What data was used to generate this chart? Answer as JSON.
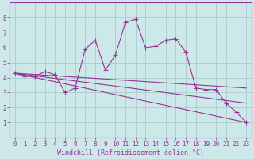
{
  "background_color": "#cce8e8",
  "grid_color": "#aacccc",
  "line_color": "#993399",
  "spine_color": "#993399",
  "xlabel": "Windchill (Refroidissement éolien,°C)",
  "xlim": [
    -0.5,
    23.5
  ],
  "ylim": [
    0,
    9
  ],
  "xticks": [
    0,
    1,
    2,
    3,
    4,
    5,
    6,
    7,
    8,
    9,
    10,
    11,
    12,
    13,
    14,
    15,
    16,
    17,
    18,
    19,
    20,
    21,
    22,
    23
  ],
  "yticks": [
    1,
    2,
    3,
    4,
    5,
    6,
    7,
    8
  ],
  "series": [
    {
      "x": [
        0,
        1,
        2,
        3,
        4,
        5,
        6,
        7,
        8,
        9,
        10,
        11,
        12,
        13,
        14,
        15,
        16,
        17,
        18,
        19,
        20,
        21,
        22,
        23
      ],
      "y": [
        4.3,
        4.1,
        4.1,
        4.4,
        4.2,
        3.0,
        3.3,
        5.9,
        6.5,
        4.5,
        5.5,
        7.7,
        7.9,
        6.0,
        6.1,
        6.5,
        6.6,
        5.7,
        3.3,
        3.2,
        3.2,
        2.3,
        1.7,
        1.0
      ],
      "marker": true
    },
    {
      "x": [
        0,
        23
      ],
      "y": [
        4.3,
        3.3
      ],
      "marker": false
    },
    {
      "x": [
        0,
        23
      ],
      "y": [
        4.3,
        2.3
      ],
      "marker": false
    },
    {
      "x": [
        0,
        23
      ],
      "y": [
        4.3,
        1.0
      ],
      "marker": false
    }
  ],
  "tick_fontsize": 5.5,
  "label_fontsize": 6.0,
  "linewidth": 0.8,
  "markersize": 2.0
}
